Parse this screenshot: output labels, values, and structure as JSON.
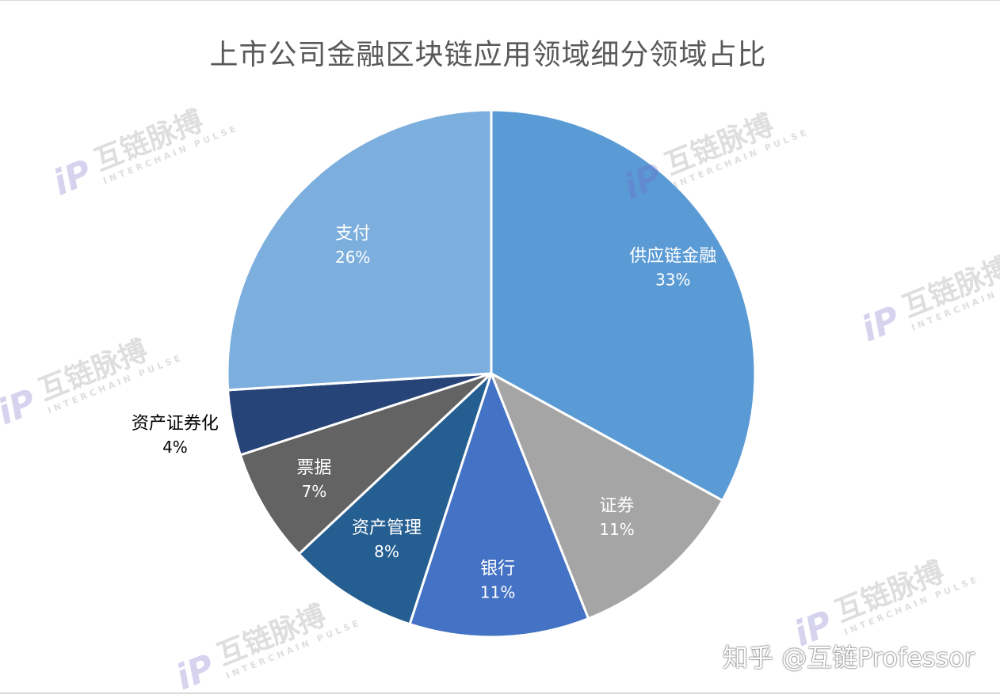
{
  "chart_data": {
    "type": "pie",
    "title": "上市公司金融区块链应用领域细分领域占比",
    "slices": [
      {
        "label": "供应链金融",
        "value": 33,
        "pct_label": "33%",
        "color": "#5b9bd5"
      },
      {
        "label": "证券",
        "value": 11,
        "pct_label": "11%",
        "color": "#a5a5a5"
      },
      {
        "label": "银行",
        "value": 11,
        "pct_label": "11%",
        "color": "#4472c4"
      },
      {
        "label": "资产管理",
        "value": 8,
        "pct_label": "8%",
        "color": "#255e91"
      },
      {
        "label": "票据",
        "value": 7,
        "pct_label": "7%",
        "color": "#636363"
      },
      {
        "label": "资产证券化",
        "value": 4,
        "pct_label": "4%",
        "color": "#264478"
      },
      {
        "label": "支付",
        "value": 26,
        "pct_label": "26%",
        "color": "#7cafdd"
      }
    ],
    "start_angle_deg": 0,
    "direction": "clockwise"
  },
  "watermark": {
    "logo_text": "iP",
    "name": "互链脉搏",
    "subtitle": "INTERCHAIN PULSE"
  },
  "credit": "知乎 @互链Professor"
}
